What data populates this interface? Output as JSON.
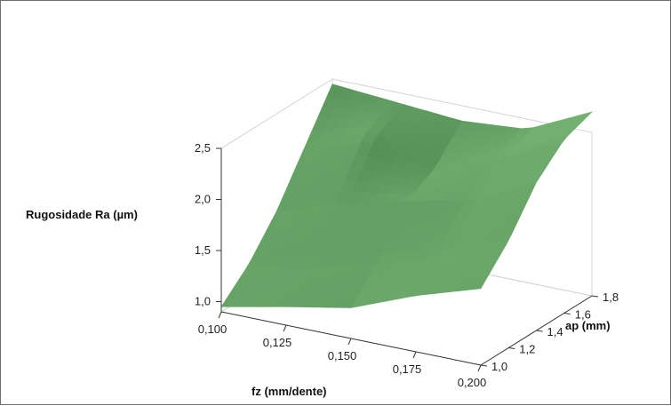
{
  "chart_data": {
    "type": "surface",
    "title": "",
    "xlabel": "fz (mm/dente)",
    "ylabel": "ap (mm)",
    "zlabel": "Rugosidade Ra (µm)",
    "x_ticks": [
      "0,100",
      "0,125",
      "0,150",
      "0,175",
      "0,200"
    ],
    "y_ticks": [
      "1,0",
      "1,2",
      "1,4",
      "1,6",
      "1,8"
    ],
    "z_ticks": [
      "1,0",
      "1,5",
      "2,0",
      "2,5"
    ],
    "xlim": [
      0.1,
      0.2
    ],
    "ylim": [
      1.0,
      1.8
    ],
    "zlim": [
      0.9,
      2.5
    ],
    "grid": true,
    "surface_color": "#3f9c4e",
    "x": [
      0.1,
      0.125,
      0.15,
      0.175,
      0.2
    ],
    "y": [
      1.0,
      1.2,
      1.4,
      1.6,
      1.8
    ],
    "z": [
      [
        0.95,
        1.08,
        1.2,
        1.45,
        1.65
      ],
      [
        1.2,
        1.35,
        1.5,
        1.7,
        1.95
      ],
      [
        1.55,
        1.75,
        1.9,
        2.05,
        2.35
      ],
      [
        2.0,
        2.25,
        2.05,
        2.3,
        2.6
      ],
      [
        2.45,
        2.4,
        2.35,
        2.4,
        2.7
      ]
    ]
  }
}
